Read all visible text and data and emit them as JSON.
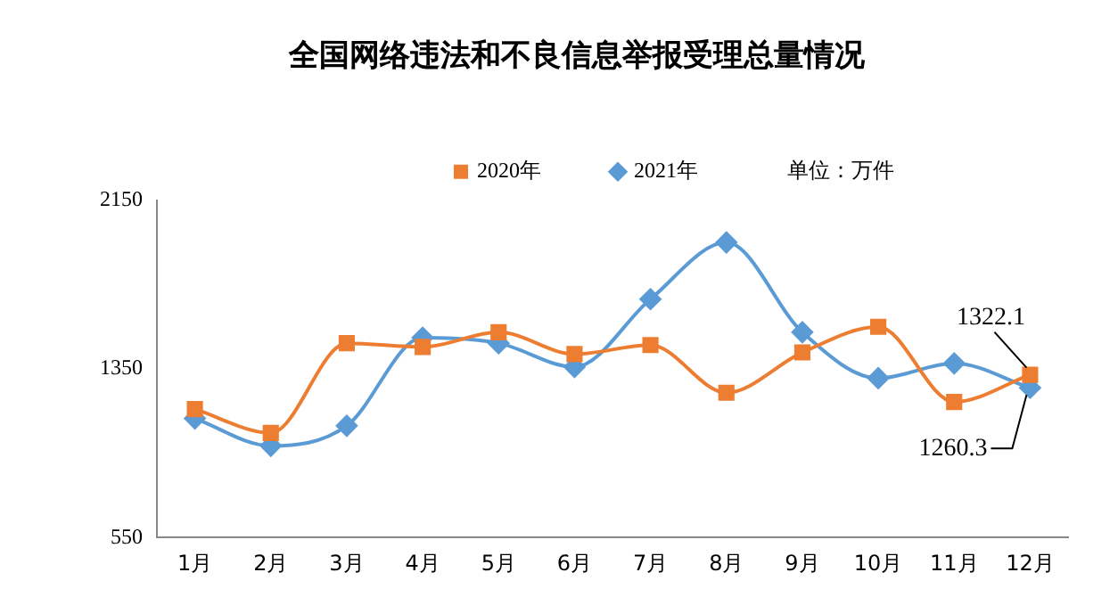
{
  "chart_data": {
    "type": "line",
    "title": "全国网络违法和不良信息举报受理总量情况",
    "annotations": [
      "单位：万件"
    ],
    "categories": [
      "1月",
      "2月",
      "3月",
      "4月",
      "5月",
      "6月",
      "7月",
      "8月",
      "9月",
      "10月",
      "11月",
      "12月"
    ],
    "ylim": [
      550,
      2150
    ],
    "yticks": [
      550,
      1350,
      2150
    ],
    "grid": false,
    "legend": "top",
    "line_style": "solid",
    "series": [
      {
        "name": "2020年",
        "color": "#ed7d31",
        "marker": "square",
        "values": [
          1159,
          1046,
          1472,
          1454,
          1524,
          1420,
          1463,
          1237,
          1428,
          1550,
          1193,
          1322.1
        ],
        "value_labels": [
          null,
          null,
          null,
          null,
          null,
          null,
          null,
          null,
          null,
          null,
          null,
          "1322.1"
        ]
      },
      {
        "name": "2021年",
        "color": "#5b9bd5",
        "marker": "diamond",
        "values": [
          1115,
          985,
          1080,
          1498,
          1472,
          1359,
          1681,
          1950,
          1524,
          1306,
          1376,
          1260.3
        ],
        "value_labels": [
          null,
          null,
          null,
          null,
          null,
          null,
          null,
          null,
          null,
          null,
          null,
          "1260.3"
        ]
      }
    ]
  }
}
